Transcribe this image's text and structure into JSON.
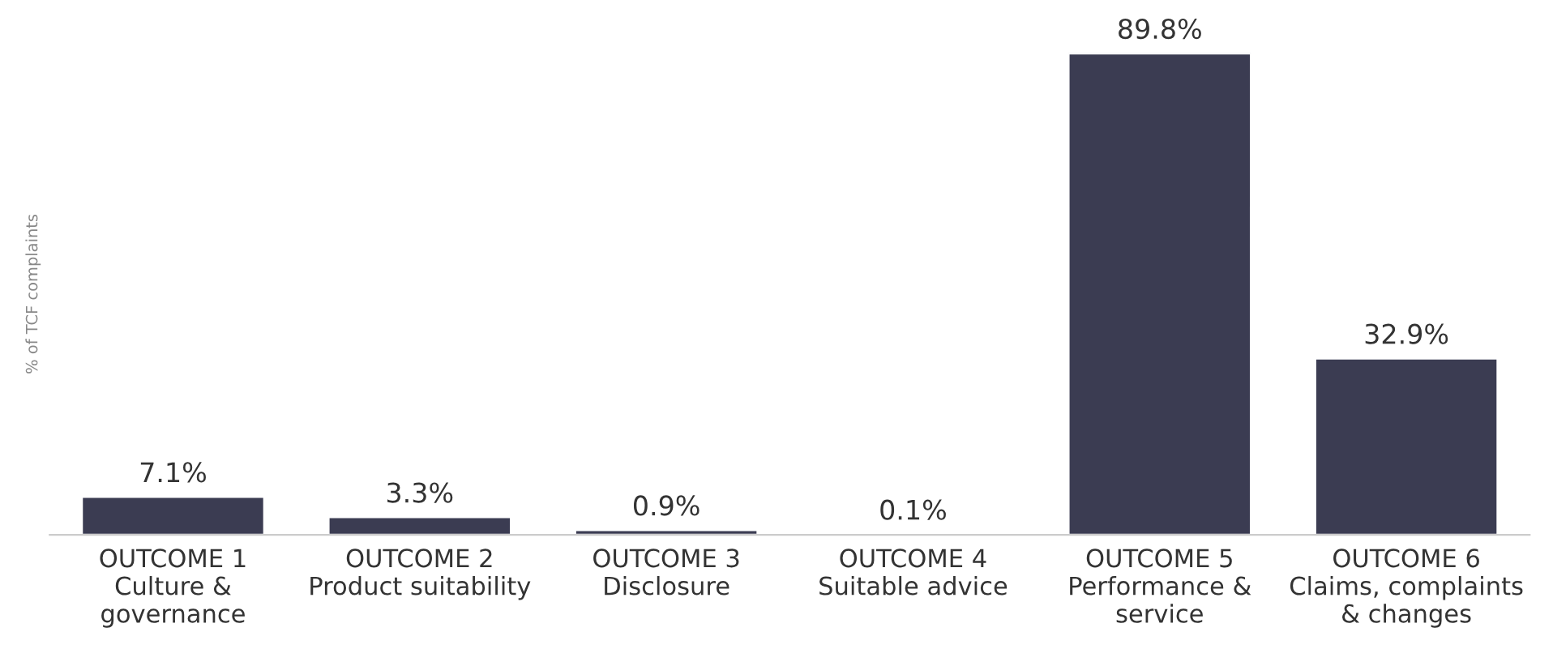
{
  "chart_data": {
    "type": "bar",
    "ylabel": "% of TCF complaints",
    "categories": [
      "OUTCOME 1\nCulture &\ngovernance",
      "OUTCOME 2\nProduct suitability",
      "OUTCOME 3\nDisclosure",
      "OUTCOME 4\nSuitable advice",
      "OUTCOME 5\nPerformance &\nservice",
      "OUTCOME 6\nClaims, complaints\n& changes"
    ],
    "values": [
      7.1,
      3.3,
      0.9,
      0.1,
      89.8,
      32.9
    ],
    "value_labels": [
      "7.1%",
      "3.3%",
      "0.9%",
      "0.1%",
      "89.8%",
      "32.9%"
    ],
    "color": "#3b3c52",
    "grid": false,
    "legend": false
  }
}
